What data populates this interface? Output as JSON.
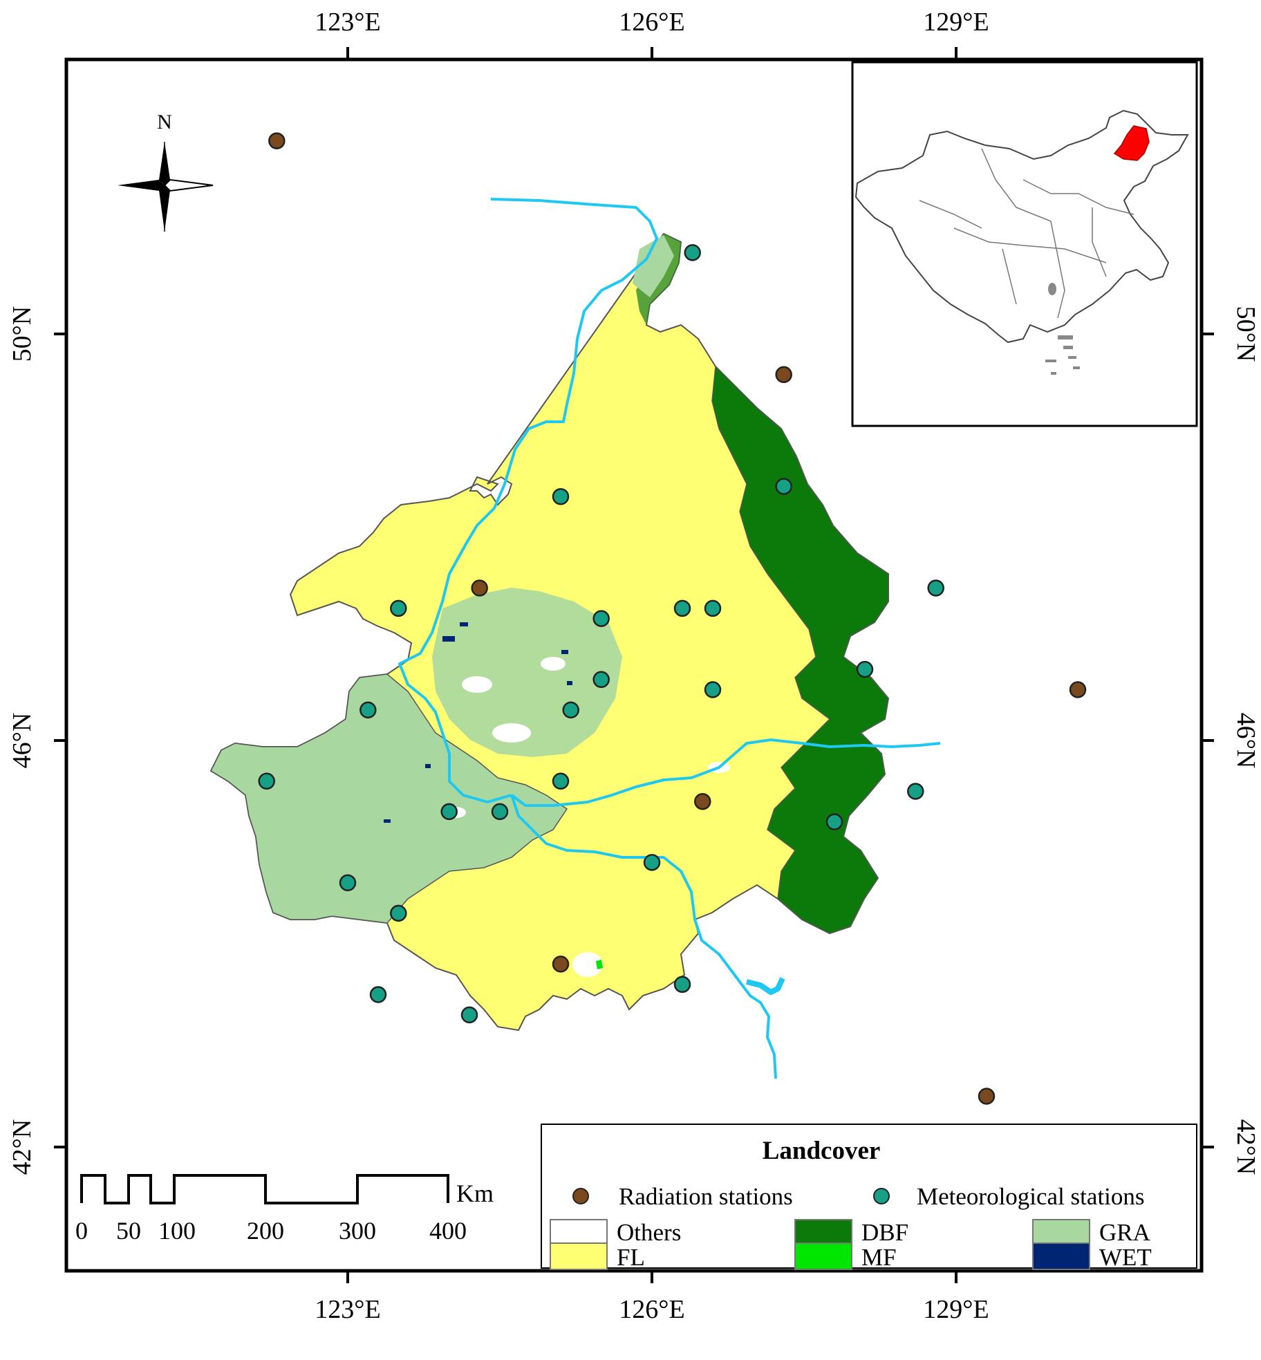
{
  "map": {
    "axes": {
      "top_lon_labels": [
        "123°E",
        "126°E",
        "129°E"
      ],
      "bottom_lon_labels": [
        "123°E",
        "126°E",
        "129°E"
      ],
      "left_lat_labels": [
        "50°N",
        "46°N",
        "42°N"
      ],
      "right_lat_labels": [
        "50°N",
        "46°N",
        "42°N"
      ]
    },
    "north_arrow": {
      "label": "N"
    },
    "scale_bar": {
      "ticks": [
        "0",
        "50",
        "100",
        "200",
        "300",
        "400"
      ],
      "unit": "Km"
    },
    "legend": {
      "title": "Landcover",
      "stations": [
        {
          "label": "Radiation stations",
          "color": "#7a4a1e"
        },
        {
          "label": "Meteorological stations",
          "color": "#16a085"
        }
      ],
      "classes": [
        {
          "label": "Others",
          "color": "#ffffff"
        },
        {
          "label": "DBF",
          "color": "#0b7a0b"
        },
        {
          "label": "GRA",
          "color": "#a8d8a0"
        },
        {
          "label": "FL",
          "color": "#ffff73"
        },
        {
          "label": "MF",
          "color": "#00e600"
        },
        {
          "label": "WET",
          "color": "#002673"
        }
      ]
    },
    "inset": {
      "highlight_color": "#ff0000"
    },
    "stations": {
      "radiation": [
        {
          "lon": 122.3,
          "lat": 51.9
        },
        {
          "lon": 127.3,
          "lat": 49.6
        },
        {
          "lon": 124.3,
          "lat": 47.5
        },
        {
          "lon": 126.5,
          "lat": 45.4
        },
        {
          "lon": 125.1,
          "lat": 43.8
        },
        {
          "lon": 129.3,
          "lat": 42.5
        },
        {
          "lon": 130.2,
          "lat": 46.5
        }
      ],
      "meteorological": [
        {
          "lon": 126.4,
          "lat": 50.8
        },
        {
          "lon": 127.3,
          "lat": 48.5
        },
        {
          "lon": 125.1,
          "lat": 48.4
        },
        {
          "lon": 126.3,
          "lat": 47.3
        },
        {
          "lon": 125.5,
          "lat": 47.2
        },
        {
          "lon": 123.5,
          "lat": 47.3
        },
        {
          "lon": 126.6,
          "lat": 47.3
        },
        {
          "lon": 125.5,
          "lat": 46.6
        },
        {
          "lon": 128.8,
          "lat": 47.5
        },
        {
          "lon": 128.1,
          "lat": 46.7
        },
        {
          "lon": 126.6,
          "lat": 46.5
        },
        {
          "lon": 123.2,
          "lat": 46.3
        },
        {
          "lon": 125.2,
          "lat": 46.3
        },
        {
          "lon": 128.6,
          "lat": 45.5
        },
        {
          "lon": 122.2,
          "lat": 45.6
        },
        {
          "lon": 125.1,
          "lat": 45.6
        },
        {
          "lon": 124.0,
          "lat": 45.3
        },
        {
          "lon": 124.5,
          "lat": 45.3
        },
        {
          "lon": 127.8,
          "lat": 45.2
        },
        {
          "lon": 126.0,
          "lat": 44.8
        },
        {
          "lon": 123.0,
          "lat": 44.6
        },
        {
          "lon": 123.5,
          "lat": 44.3
        },
        {
          "lon": 126.3,
          "lat": 43.6
        },
        {
          "lon": 123.3,
          "lat": 43.5
        },
        {
          "lon": 124.2,
          "lat": 43.3
        }
      ]
    }
  }
}
